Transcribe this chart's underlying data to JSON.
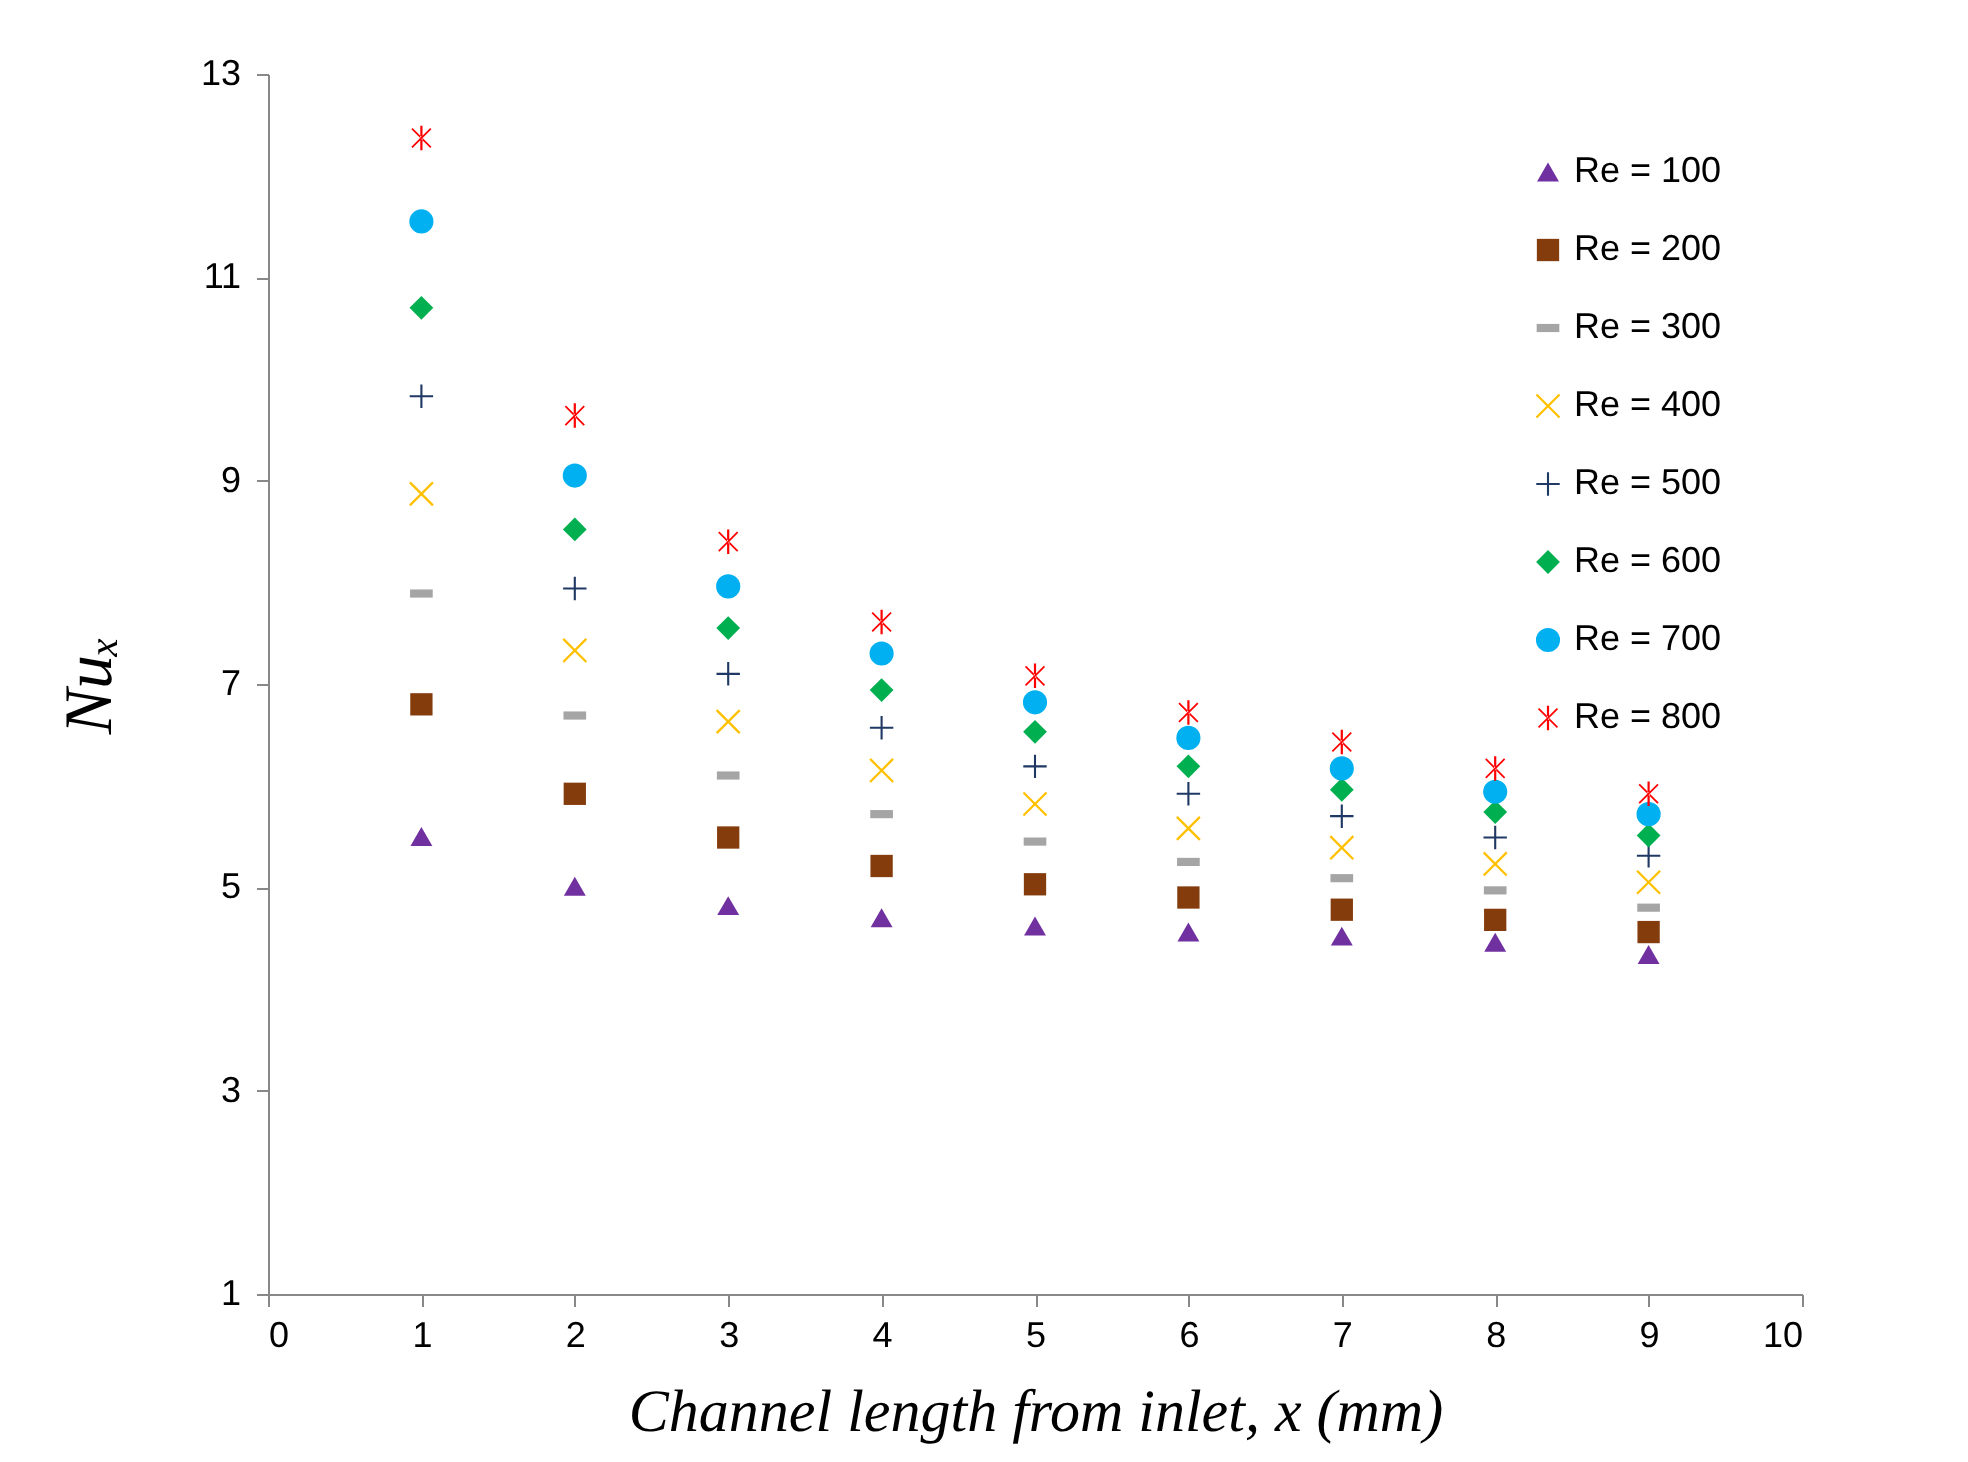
{
  "chart_data": {
    "type": "scatter",
    "xlabel": "Channel length from inlet, x (mm)",
    "ylabel": "Nuₓ",
    "x": [
      1,
      2,
      3,
      4,
      5,
      6,
      7,
      8,
      9
    ],
    "xlim": [
      0,
      10
    ],
    "xticks": [
      0,
      1,
      2,
      3,
      4,
      5,
      6,
      7,
      8,
      9,
      10
    ],
    "ylim": [
      1,
      13
    ],
    "yticks": [
      1,
      3,
      5,
      7,
      9,
      11,
      13
    ],
    "grid": false,
    "legend": "top right",
    "series": [
      {
        "name": "Re = 100",
        "color": "#7030a0",
        "marker": "triangle",
        "values": [
          5.5,
          5.01,
          4.82,
          4.7,
          4.62,
          4.56,
          4.52,
          4.46,
          4.34
        ]
      },
      {
        "name": "Re = 200",
        "color": "#843c0c",
        "marker": "square",
        "values": [
          6.8,
          5.92,
          5.49,
          5.21,
          5.03,
          4.9,
          4.78,
          4.68,
          4.56
        ]
      },
      {
        "name": "Re = 300",
        "color": "#a5a5a5",
        "values": [
          7.89,
          6.69,
          6.1,
          5.72,
          5.45,
          5.25,
          5.09,
          4.97,
          4.8
        ]
      },
      {
        "name": "Re = 400",
        "color": "#ffc000",
        "values": [
          8.87,
          7.33,
          6.63,
          6.15,
          5.82,
          5.58,
          5.39,
          5.23,
          5.05
        ]
      },
      {
        "name": "Re = 500",
        "color": "#1f3864",
        "marker": "cross",
        "values": [
          9.83,
          7.94,
          7.1,
          6.57,
          6.19,
          5.92,
          5.7,
          5.49,
          5.31
        ]
      },
      {
        "name": "Re = 600",
        "color": "#00b050",
        "marker": "diamond",
        "values": [
          10.7,
          8.52,
          7.55,
          6.94,
          6.53,
          6.19,
          5.96,
          5.74,
          5.51
        ]
      },
      {
        "name": "Re = 700",
        "color": "#00b0f0",
        "marker": "circle",
        "values": [
          11.55,
          9.05,
          7.96,
          7.3,
          6.82,
          6.47,
          6.17,
          5.94,
          5.72
        ]
      },
      {
        "name": "Re = 800",
        "color": "#ff0000",
        "values": [
          12.37,
          9.64,
          8.4,
          7.61,
          7.08,
          6.72,
          6.43,
          6.17,
          5.92
        ]
      }
    ]
  }
}
